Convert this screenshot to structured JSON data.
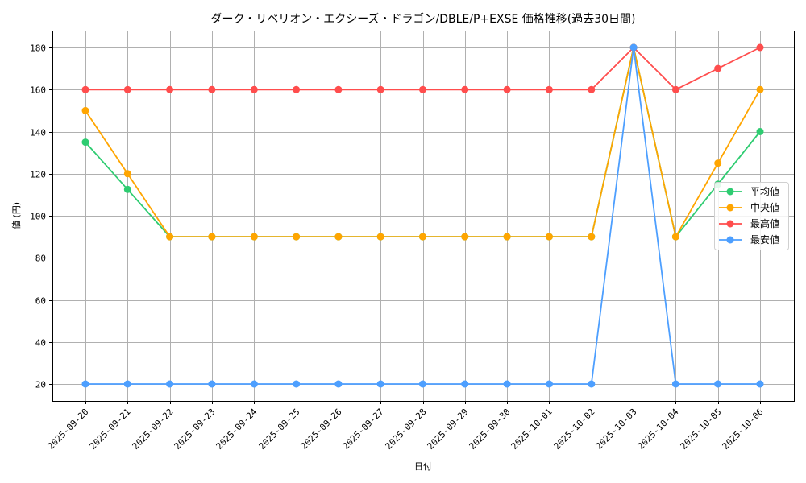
{
  "chart_data": {
    "type": "line",
    "title": "ダーク・リベリオン・エクシーズ・ドラゴン/DBLE/P+EXSE 価格推移(過去30日間)",
    "xlabel": "日付",
    "ylabel": "値 (円)",
    "ylim": [
      12,
      188
    ],
    "yticks": [
      20,
      40,
      60,
      80,
      100,
      120,
      140,
      160,
      180
    ],
    "grid": true,
    "legend_position": "center right",
    "x": [
      "2025-09-20",
      "2025-09-21",
      "2025-09-22",
      "2025-09-23",
      "2025-09-24",
      "2025-09-25",
      "2025-09-26",
      "2025-09-27",
      "2025-09-28",
      "2025-09-29",
      "2025-09-30",
      "2025-10-01",
      "2025-10-02",
      "2025-10-03",
      "2025-10-04",
      "2025-10-05",
      "2025-10-06"
    ],
    "series": [
      {
        "name": "平均値",
        "color": "#2ecc71",
        "values": [
          135,
          112.5,
          90,
          90,
          90,
          90,
          90,
          90,
          90,
          90,
          90,
          90,
          90,
          180,
          90,
          115,
          140
        ]
      },
      {
        "name": "中央値",
        "color": "#ffa500",
        "values": [
          150,
          120,
          90,
          90,
          90,
          90,
          90,
          90,
          90,
          90,
          90,
          90,
          90,
          180,
          90,
          125,
          160
        ]
      },
      {
        "name": "最高値",
        "color": "#ff4d4d",
        "values": [
          160,
          160,
          160,
          160,
          160,
          160,
          160,
          160,
          160,
          160,
          160,
          160,
          160,
          180,
          160,
          170,
          180
        ]
      },
      {
        "name": "最安値",
        "color": "#4d9fff",
        "values": [
          20,
          20,
          20,
          20,
          20,
          20,
          20,
          20,
          20,
          20,
          20,
          20,
          20,
          180,
          20,
          20,
          20
        ]
      }
    ]
  }
}
